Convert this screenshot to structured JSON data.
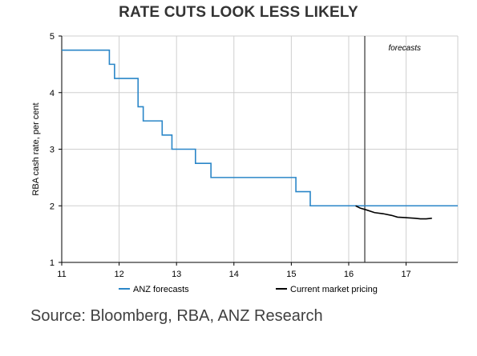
{
  "title": "RATE CUTS LOOK LESS LIKELY",
  "source": "Source: Bloomberg, RBA, ANZ Research",
  "colors": {
    "anz": "#2a86c8",
    "market": "#000000",
    "grid": "#cfcfcf",
    "axis": "#000000"
  },
  "chart_data": {
    "type": "line",
    "title": "RATE CUTS LOOK LESS LIKELY",
    "ylabel": "RBA cash rate, per cent",
    "xlabel": "",
    "xlim": [
      11,
      17.9
    ],
    "ylim": [
      1,
      5
    ],
    "xticks": [
      11,
      12,
      13,
      14,
      15,
      16,
      17
    ],
    "yticks": [
      1,
      2,
      3,
      4,
      5
    ],
    "grid": true,
    "legend": "bottom",
    "annotations": [
      {
        "text": "forecasts",
        "x": 16.3
      }
    ],
    "vline_x": 16.28,
    "series": [
      {
        "name": "ANZ forecasts",
        "type": "step",
        "points": [
          [
            11.0,
            4.75
          ],
          [
            11.83,
            4.75
          ],
          [
            11.83,
            4.5
          ],
          [
            11.92,
            4.5
          ],
          [
            11.92,
            4.25
          ],
          [
            12.33,
            4.25
          ],
          [
            12.33,
            3.75
          ],
          [
            12.42,
            3.75
          ],
          [
            12.42,
            3.5
          ],
          [
            12.75,
            3.5
          ],
          [
            12.75,
            3.25
          ],
          [
            12.92,
            3.25
          ],
          [
            12.92,
            3.0
          ],
          [
            13.33,
            3.0
          ],
          [
            13.33,
            2.75
          ],
          [
            13.6,
            2.75
          ],
          [
            13.6,
            2.5
          ],
          [
            15.08,
            2.5
          ],
          [
            15.08,
            2.25
          ],
          [
            15.33,
            2.25
          ],
          [
            15.33,
            2.0
          ],
          [
            17.9,
            2.0
          ]
        ]
      },
      {
        "name": "Current market pricing",
        "type": "line",
        "points": [
          [
            16.12,
            2.0
          ],
          [
            16.2,
            1.96
          ],
          [
            16.3,
            1.93
          ],
          [
            16.45,
            1.88
          ],
          [
            16.6,
            1.86
          ],
          [
            16.75,
            1.83
          ],
          [
            16.85,
            1.8
          ],
          [
            17.0,
            1.79
          ],
          [
            17.15,
            1.78
          ],
          [
            17.25,
            1.77
          ],
          [
            17.35,
            1.77
          ],
          [
            17.45,
            1.78
          ]
        ]
      }
    ]
  }
}
